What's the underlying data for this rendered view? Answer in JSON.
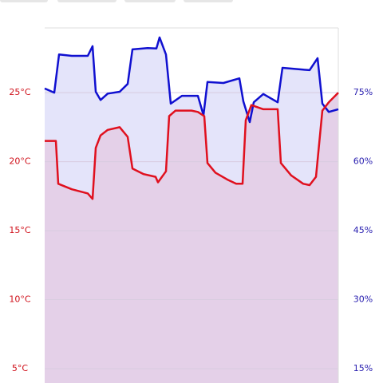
{
  "chart_data": {
    "type": "line",
    "xlim": [
      0,
      368
    ],
    "ylim": [
      3.96,
      29.69
    ],
    "y2lim": [
      11.87,
      89.07
    ],
    "yticks": [
      {
        "value": 5,
        "label": "5°C"
      },
      {
        "value": 10,
        "label": "10°C"
      },
      {
        "value": 15,
        "label": "15°C"
      },
      {
        "value": 20,
        "label": "20°C"
      },
      {
        "value": 25,
        "label": "25°C"
      }
    ],
    "y2ticks": [
      {
        "value": 15,
        "label": "15%"
      },
      {
        "value": 30,
        "label": "30%"
      },
      {
        "value": 45,
        "label": "45%"
      },
      {
        "value": 60,
        "label": "60%"
      },
      {
        "value": 75,
        "label": "75%"
      }
    ],
    "grid": true,
    "y_color": "#d0101a",
    "y2_color": "#2a20b0",
    "series": [
      {
        "axis": "y2",
        "color": "#1010d0",
        "fill": "#e4e4fa",
        "x": [
          0,
          12,
          18,
          34,
          54,
          60,
          64,
          70,
          79,
          94,
          104,
          110,
          129,
          140,
          144,
          152,
          158,
          172,
          192,
          199,
          204,
          224,
          244,
          249,
          257,
          262,
          274,
          292,
          298,
          324,
          332,
          342,
          348,
          356,
          368
        ],
        "values": [
          75.9,
          75.0,
          83.3,
          83.0,
          83.0,
          85.1,
          75.2,
          73.4,
          74.8,
          75.2,
          76.9,
          84.4,
          84.7,
          84.6,
          87.0,
          83.3,
          72.6,
          74.3,
          74.3,
          70.1,
          77.3,
          77.1,
          78.1,
          73.1,
          68.6,
          72.9,
          74.7,
          72.9,
          80.4,
          80.0,
          79.9,
          82.5,
          72.6,
          70.8,
          71.4
        ]
      },
      {
        "axis": "y",
        "color": "#e0101e",
        "fill": "#e4d0e8",
        "x": [
          0,
          14,
          17,
          34,
          54,
          60,
          64,
          70,
          79,
          94,
          104,
          110,
          124,
          139,
          142,
          152,
          156,
          164,
          184,
          192,
          200,
          204,
          214,
          229,
          240,
          248,
          252,
          259,
          274,
          292,
          296,
          309,
          324,
          332,
          340,
          348,
          356,
          368
        ],
        "values": [
          21.5,
          21.5,
          18.4,
          18.0,
          17.7,
          17.3,
          21.0,
          21.9,
          22.3,
          22.5,
          21.8,
          19.5,
          19.1,
          18.9,
          18.5,
          19.3,
          23.3,
          23.7,
          23.7,
          23.6,
          23.3,
          19.9,
          19.2,
          18.7,
          18.4,
          18.4,
          23.0,
          24.1,
          23.8,
          23.8,
          19.9,
          19.0,
          18.4,
          18.3,
          18.9,
          23.7,
          24.3,
          25.0
        ]
      }
    ]
  }
}
